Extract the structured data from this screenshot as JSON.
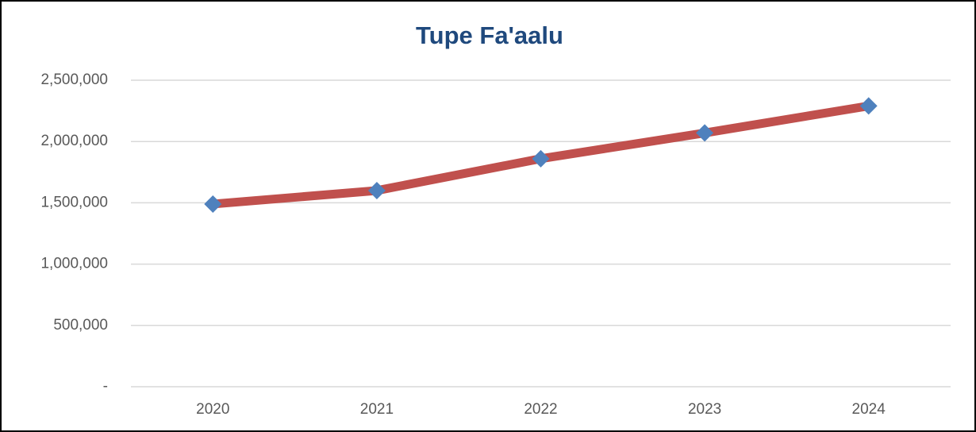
{
  "chart_data": {
    "type": "line",
    "title": "Tupe Fa'aalu",
    "categories": [
      "2020",
      "2021",
      "2022",
      "2023",
      "2024"
    ],
    "series": [
      {
        "name": "Tupe Fa'aalu",
        "color": "#c0504d",
        "marker_color": "#4f81bd",
        "values": [
          1490000,
          1600000,
          1860000,
          2070000,
          2290000
        ]
      }
    ],
    "ylim": [
      0,
      2500000
    ],
    "yticks": [
      {
        "value": 0,
        "label": "-"
      },
      {
        "value": 500000,
        "label": "500,000"
      },
      {
        "value": 1000000,
        "label": "1,000,000"
      },
      {
        "value": 1500000,
        "label": "1,500,000"
      },
      {
        "value": 2000000,
        "label": "2,000,000"
      },
      {
        "value": 2500000,
        "label": "2,500,000"
      }
    ],
    "grid": true
  }
}
